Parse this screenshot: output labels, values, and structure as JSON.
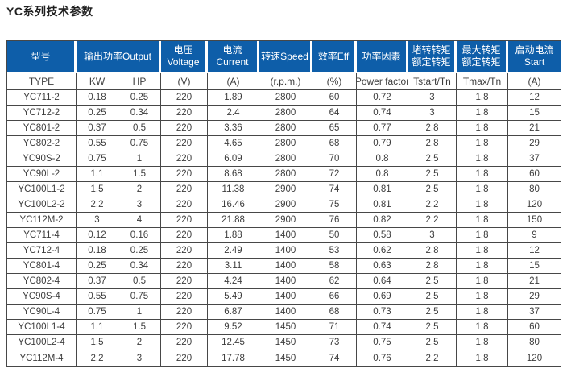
{
  "page_title": "YC系列技术参数",
  "colors": {
    "header_bg": "#0e5ea9",
    "header_text": "#ffffff",
    "border": "#474747",
    "body_text": "#3d3d3d"
  },
  "table": {
    "header_groups": [
      {
        "label": "型号",
        "colspan": 1
      },
      {
        "label": "输出功率Output",
        "colspan": 2
      },
      {
        "label": "电压Voltage",
        "colspan": 1
      },
      {
        "label": "电流Current",
        "colspan": 1
      },
      {
        "label": "转速Speed",
        "colspan": 1
      },
      {
        "label": "效率Eff",
        "colspan": 1
      },
      {
        "label": "功率因素",
        "colspan": 1
      },
      {
        "label": "堵转转矩\n额定转矩",
        "colspan": 1
      },
      {
        "label": "最大转矩\n额定转矩",
        "colspan": 1
      },
      {
        "label": "启动电流\nStart",
        "colspan": 1
      }
    ],
    "subheader": [
      "TYPE",
      "KW",
      "HP",
      "(V)",
      "(A)",
      "(r.p.m.)",
      "(%)",
      "Power factor",
      "Tstart/Tn",
      "Tmax/Tn",
      "(A)"
    ],
    "rows": [
      [
        "YC711-2",
        "0.18",
        "0.25",
        "220",
        "1.89",
        "2800",
        "60",
        "0.72",
        "3",
        "1.8",
        "12"
      ],
      [
        "YC712-2",
        "0.25",
        "0.34",
        "220",
        "2.4",
        "2800",
        "64",
        "0.74",
        "3",
        "1.8",
        "15"
      ],
      [
        "YC801-2",
        "0.37",
        "0.5",
        "220",
        "3.36",
        "2800",
        "65",
        "0.77",
        "2.8",
        "1.8",
        "21"
      ],
      [
        "YC802-2",
        "0.55",
        "0.75",
        "220",
        "4.65",
        "2800",
        "68",
        "0.79",
        "2.8",
        "1.8",
        "29"
      ],
      [
        "YC90S-2",
        "0.75",
        "1",
        "220",
        "6.09",
        "2800",
        "70",
        "0.8",
        "2.5",
        "1.8",
        "37"
      ],
      [
        "YC90L-2",
        "1.1",
        "1.5",
        "220",
        "8.68",
        "2800",
        "72",
        "0.8",
        "2.5",
        "1.8",
        "60"
      ],
      [
        "YC100L1-2",
        "1.5",
        "2",
        "220",
        "11.38",
        "2900",
        "74",
        "0.81",
        "2.5",
        "1.8",
        "80"
      ],
      [
        "YC100L2-2",
        "2.2",
        "3",
        "220",
        "16.46",
        "2900",
        "75",
        "0.81",
        "2.2",
        "1.8",
        "120"
      ],
      [
        "YC112M-2",
        "3",
        "4",
        "220",
        "21.88",
        "2900",
        "76",
        "0.82",
        "2.2",
        "1.8",
        "150"
      ],
      [
        "YC711-4",
        "0.12",
        "0.16",
        "220",
        "1.88",
        "1400",
        "50",
        "0.58",
        "3",
        "1.8",
        "9"
      ],
      [
        "YC712-4",
        "0.18",
        "0.25",
        "220",
        "2.49",
        "1400",
        "53",
        "0.62",
        "2.8",
        "1.8",
        "12"
      ],
      [
        "YC801-4",
        "0.25",
        "0.34",
        "220",
        "3.11",
        "1400",
        "58",
        "0.63",
        "2.8",
        "1.8",
        "15"
      ],
      [
        "YC802-4",
        "0.37",
        "0.5",
        "220",
        "4.24",
        "1400",
        "62",
        "0.64",
        "2.5",
        "1.8",
        "21"
      ],
      [
        "YC90S-4",
        "0.55",
        "0.75",
        "220",
        "5.49",
        "1400",
        "66",
        "0.69",
        "2.5",
        "1.8",
        "29"
      ],
      [
        "YC90L-4",
        "0.75",
        "1",
        "220",
        "6.87",
        "1400",
        "68",
        "0.73",
        "2.5",
        "1.8",
        "37"
      ],
      [
        "YC100L1-4",
        "1.1",
        "1.5",
        "220",
        "9.52",
        "1450",
        "71",
        "0.74",
        "2.5",
        "1.8",
        "60"
      ],
      [
        "YC100L2-4",
        "1.5",
        "2",
        "220",
        "12.45",
        "1450",
        "73",
        "0.75",
        "2.5",
        "1.8",
        "80"
      ],
      [
        "YC112M-4",
        "2.2",
        "3",
        "220",
        "17.78",
        "1450",
        "74",
        "0.76",
        "2.2",
        "1.8",
        "120"
      ]
    ]
  }
}
